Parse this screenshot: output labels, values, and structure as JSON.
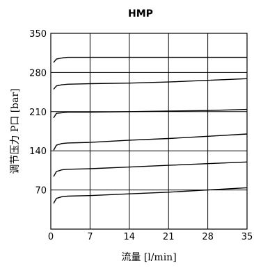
{
  "chart_data": {
    "type": "line",
    "title": "HMP",
    "xlabel": "流量 [l/min]",
    "ylabel": "调节压力 P口 [bar]",
    "xlim": [
      0,
      35
    ],
    "ylim": [
      0,
      350
    ],
    "xticks": [
      "0",
      "7",
      "14",
      "21",
      "28",
      "35"
    ],
    "yticks": [
      "70",
      "140",
      "210",
      "280",
      "350"
    ],
    "grid": true,
    "series": [
      {
        "x": [
          0.5,
          1,
          2,
          3,
          7,
          14,
          21,
          28,
          35
        ],
        "y": [
          46,
          55,
          58,
          59,
          60,
          63,
          66,
          70,
          74
        ]
      },
      {
        "x": [
          0.5,
          1,
          2,
          3,
          7,
          14,
          21,
          28,
          35
        ],
        "y": [
          94,
          103,
          106,
          107,
          108,
          111,
          114,
          117,
          120
        ]
      },
      {
        "x": [
          0.5,
          1,
          2,
          3,
          7,
          14,
          21,
          28,
          35
        ],
        "y": [
          141,
          150,
          153,
          154,
          155,
          159,
          162,
          166,
          170
        ]
      },
      {
        "x": [
          0.5,
          1,
          2,
          3,
          7,
          14,
          21,
          28,
          35
        ],
        "y": [
          199,
          207,
          208,
          209,
          209,
          210,
          211,
          212,
          214
        ]
      },
      {
        "x": [
          0.5,
          1,
          2,
          3,
          7,
          14,
          21,
          28,
          35
        ],
        "y": [
          250,
          256,
          258,
          259,
          260,
          261,
          263,
          266,
          269
        ]
      },
      {
        "x": [
          0.5,
          1,
          2,
          3,
          7,
          14,
          21,
          28,
          35
        ],
        "y": [
          298,
          304,
          306,
          307,
          307,
          307,
          307,
          307,
          307
        ]
      }
    ]
  }
}
